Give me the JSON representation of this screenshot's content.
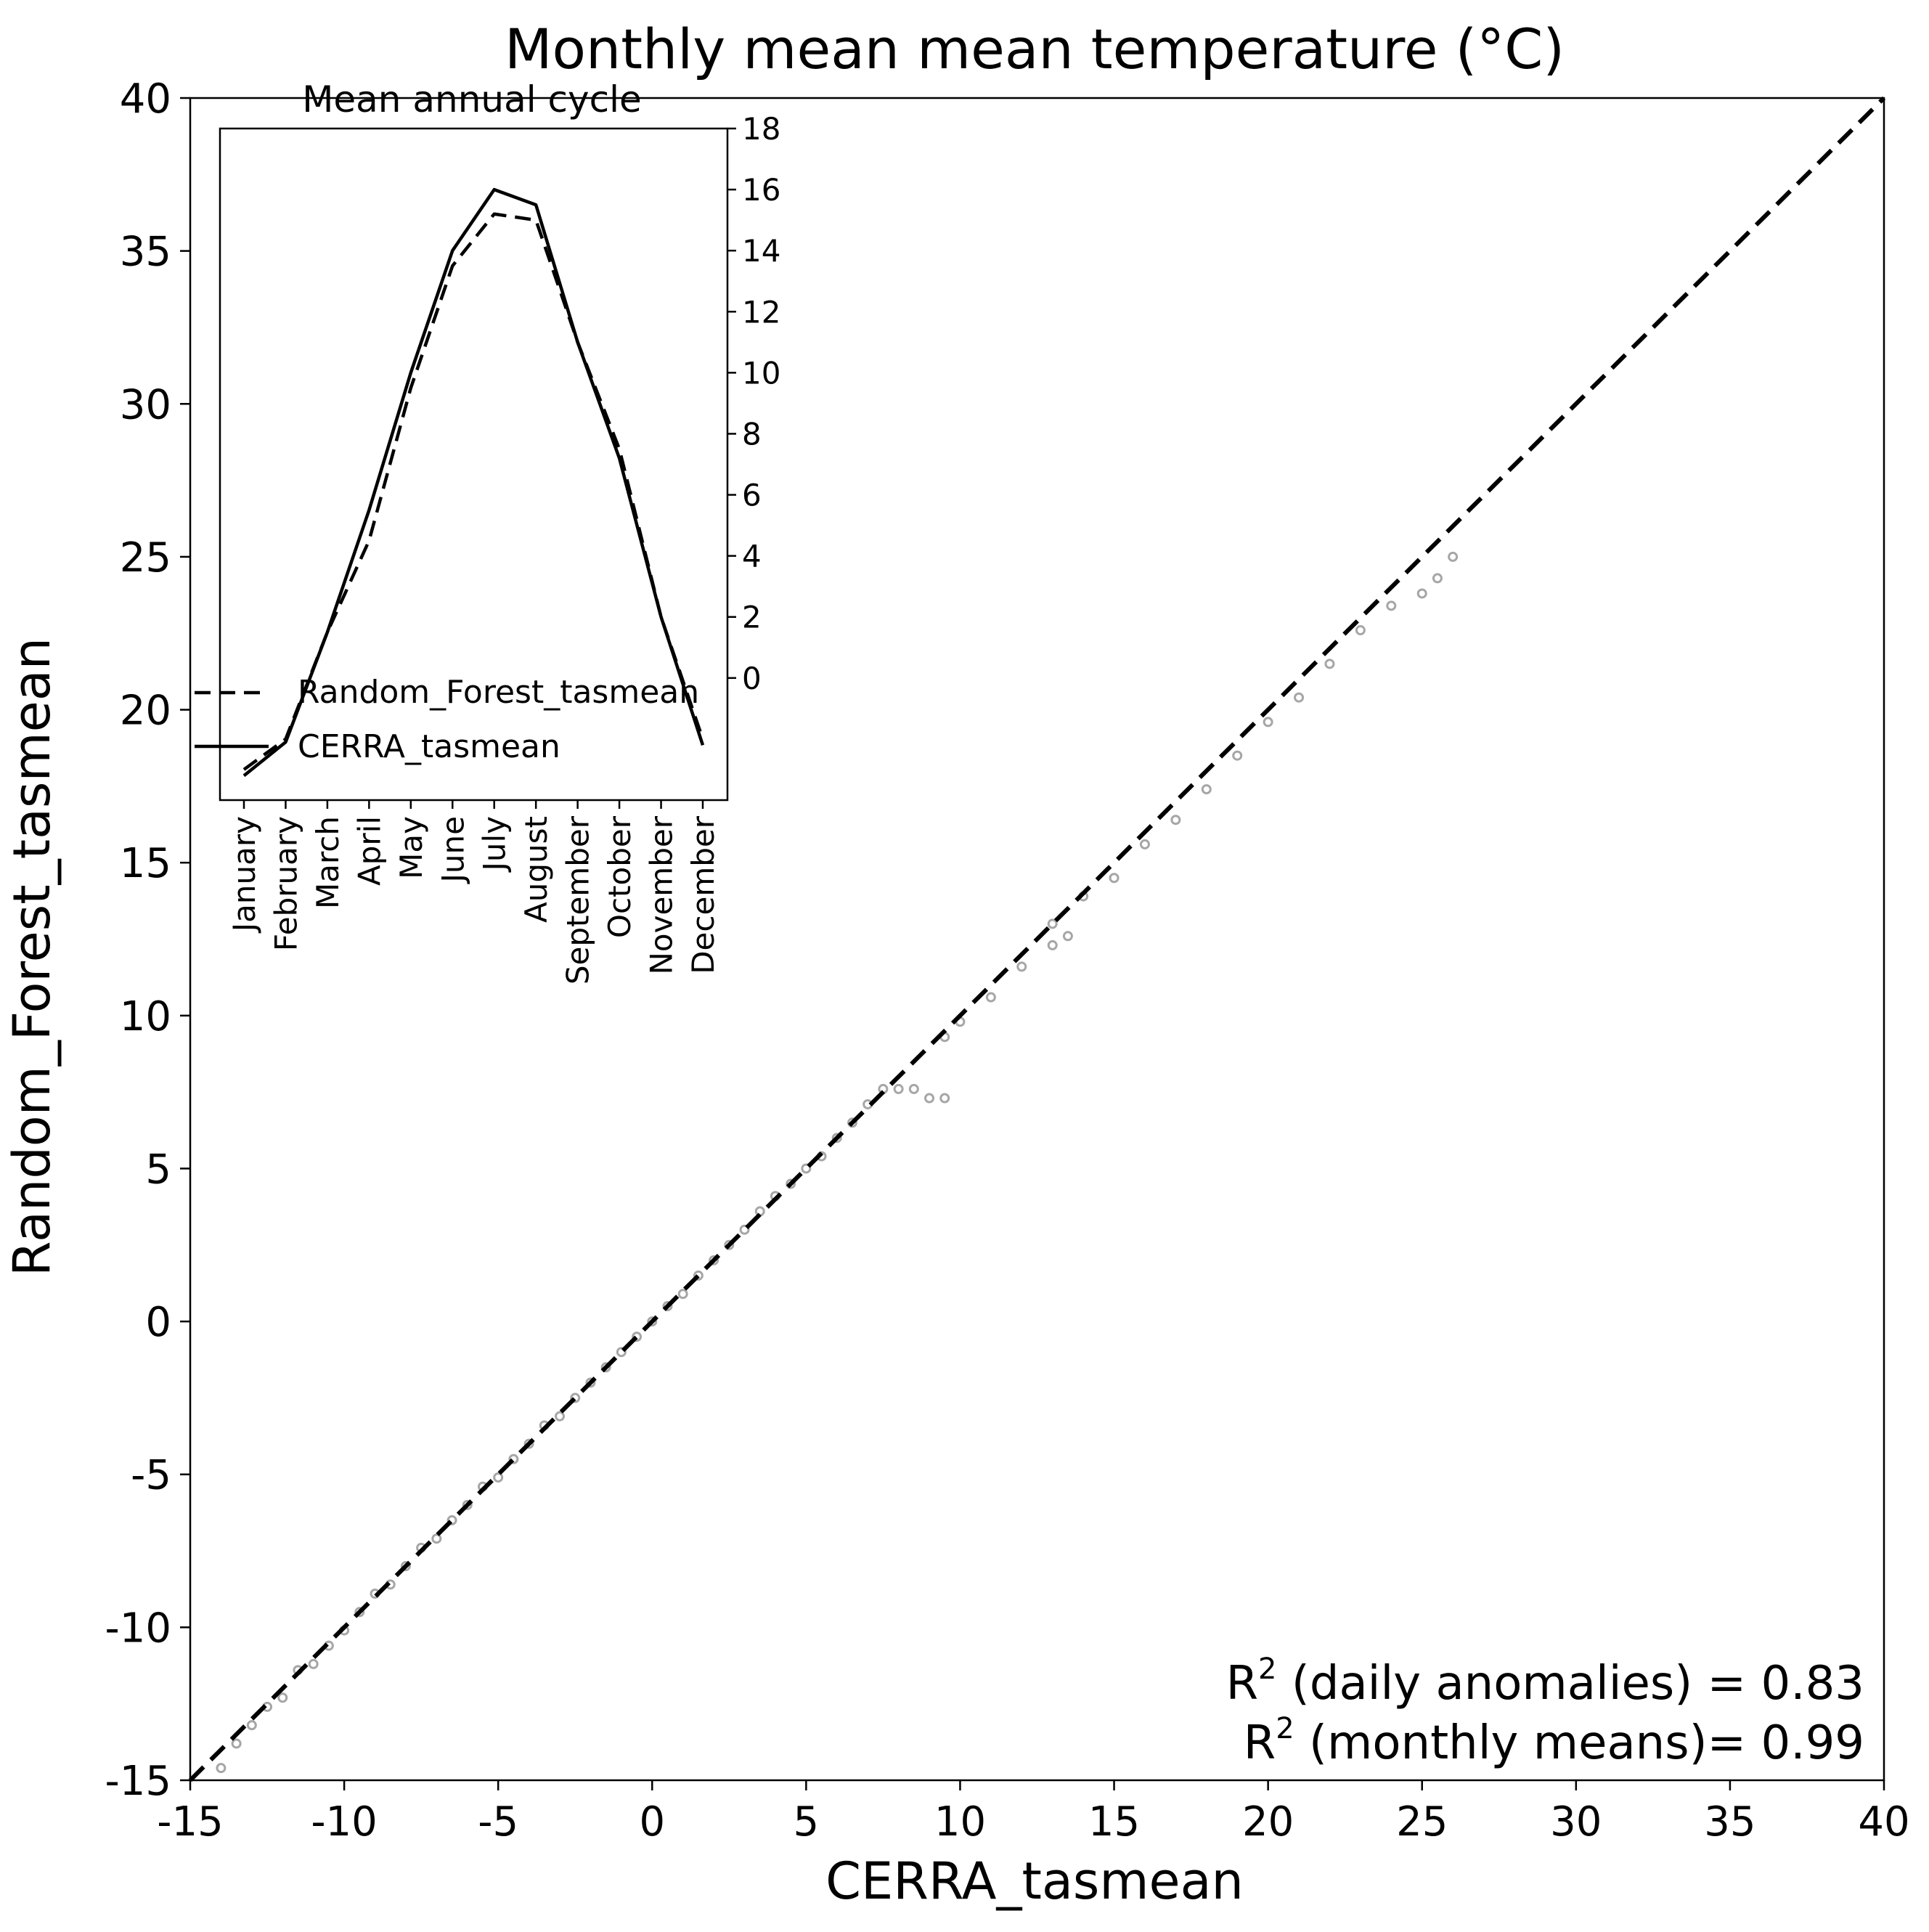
{
  "chart_data": [
    {
      "type": "scatter",
      "title": "Monthly mean mean temperature (°C)",
      "xlabel": "CERRA_tasmean",
      "ylabel": "Random_Forest_tasmean",
      "xlim": [
        -15,
        40
      ],
      "ylim": [
        -15,
        40
      ],
      "xticks": [
        -15,
        -10,
        -5,
        0,
        5,
        10,
        15,
        20,
        25,
        30,
        35,
        40
      ],
      "yticks": [
        -15,
        -10,
        -5,
        0,
        5,
        10,
        15,
        20,
        25,
        30,
        35,
        40
      ],
      "grid": false,
      "point_color": "#808080",
      "reference_line": {
        "style": "dashed",
        "color": "#000000",
        "points": [
          [
            -15,
            -15
          ],
          [
            40,
            40
          ]
        ]
      },
      "points_approx": [
        [
          -14.0,
          -14.6
        ],
        [
          -13.5,
          -13.8
        ],
        [
          -13.0,
          -13.2
        ],
        [
          -12.5,
          -12.6
        ],
        [
          -12.0,
          -12.3
        ],
        [
          -11.5,
          -11.4
        ],
        [
          -11.0,
          -11.2
        ],
        [
          -10.5,
          -10.6
        ],
        [
          -10.0,
          -10.1
        ],
        [
          -9.5,
          -9.5
        ],
        [
          -9.0,
          -8.9
        ],
        [
          -8.5,
          -8.6
        ],
        [
          -8.0,
          -8.0
        ],
        [
          -7.5,
          -7.4
        ],
        [
          -7.0,
          -7.1
        ],
        [
          -6.5,
          -6.5
        ],
        [
          -6.0,
          -6.0
        ],
        [
          -5.5,
          -5.4
        ],
        [
          -5.0,
          -5.1
        ],
        [
          -4.5,
          -4.5
        ],
        [
          -4.0,
          -4.0
        ],
        [
          -3.5,
          -3.4
        ],
        [
          -3.0,
          -3.1
        ],
        [
          -2.5,
          -2.5
        ],
        [
          -2.0,
          -2.0
        ],
        [
          -1.5,
          -1.5
        ],
        [
          -1.0,
          -1.0
        ],
        [
          -0.5,
          -0.5
        ],
        [
          0.0,
          0.0
        ],
        [
          0.5,
          0.5
        ],
        [
          1.0,
          0.9
        ],
        [
          1.5,
          1.5
        ],
        [
          2.0,
          2.0
        ],
        [
          2.5,
          2.5
        ],
        [
          3.0,
          3.0
        ],
        [
          3.5,
          3.6
        ],
        [
          4.0,
          4.1
        ],
        [
          4.5,
          4.5
        ],
        [
          5.0,
          5.0
        ],
        [
          5.5,
          5.4
        ],
        [
          6.0,
          6.0
        ],
        [
          6.5,
          6.5
        ],
        [
          7.0,
          7.1
        ],
        [
          7.5,
          7.6
        ],
        [
          8.0,
          7.6
        ],
        [
          8.5,
          7.6
        ],
        [
          9.0,
          7.3
        ],
        [
          9.5,
          7.3
        ],
        [
          9.5,
          9.3
        ],
        [
          10.0,
          9.8
        ],
        [
          11.0,
          10.6
        ],
        [
          12.0,
          11.6
        ],
        [
          13.0,
          12.3
        ],
        [
          13.5,
          12.6
        ],
        [
          13.0,
          13.0
        ],
        [
          14.0,
          13.9
        ],
        [
          15.0,
          14.5
        ],
        [
          16.0,
          15.6
        ],
        [
          17.0,
          16.4
        ],
        [
          18.0,
          17.4
        ],
        [
          19.0,
          18.5
        ],
        [
          20.0,
          19.6
        ],
        [
          21.0,
          20.4
        ],
        [
          22.0,
          21.5
        ],
        [
          23.0,
          22.6
        ],
        [
          24.0,
          23.4
        ],
        [
          25.0,
          23.8
        ],
        [
          25.5,
          24.3
        ],
        [
          26.0,
          25.0
        ]
      ],
      "annotations": [
        "R$^2$ (daily anomalies) = 0.83",
        "R$^2$ (monthly means)= 0.99"
      ]
    },
    {
      "type": "line",
      "title": "Mean annual cycle",
      "categories": [
        "January",
        "February",
        "March",
        "April",
        "May",
        "June",
        "July",
        "August",
        "September",
        "October",
        "November",
        "December"
      ],
      "ylim": [
        -4,
        18
      ],
      "yticks": [
        0,
        2,
        4,
        6,
        8,
        10,
        12,
        14,
        16,
        18
      ],
      "y_axis_side": "right",
      "legend_position": "left",
      "series": [
        {
          "name": "Random_Forest_tasmean",
          "style": "dashed",
          "values": [
            -3.0,
            -2.0,
            1.5,
            4.5,
            9.5,
            13.5,
            15.2,
            15.0,
            11.0,
            7.5,
            2.0,
            -2.0
          ]
        },
        {
          "name": "CERRA_tasmean",
          "style": "solid",
          "values": [
            -3.2,
            -2.1,
            1.5,
            5.5,
            10.0,
            14.0,
            16.0,
            15.5,
            11.0,
            7.2,
            2.0,
            -2.2
          ]
        }
      ]
    }
  ]
}
